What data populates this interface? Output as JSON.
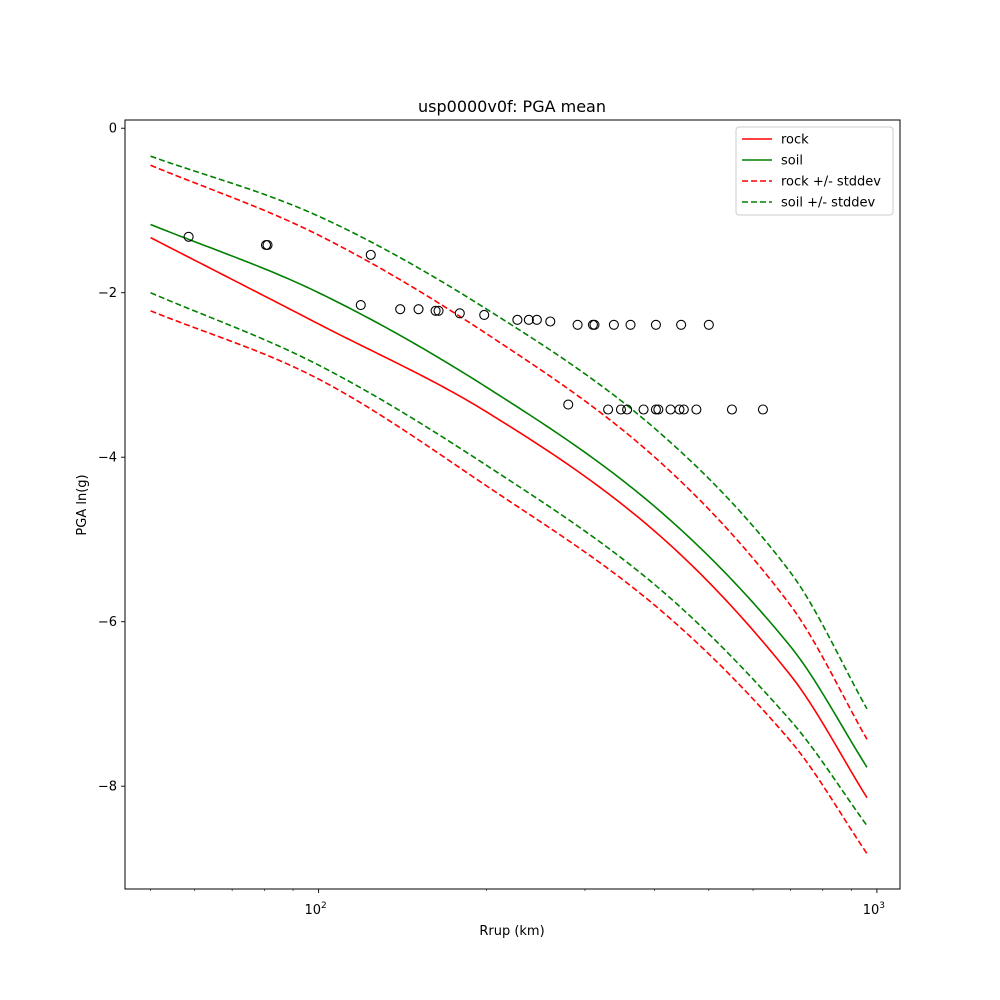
{
  "chart_data": {
    "type": "line",
    "title": "usp0000v0f: PGA mean",
    "xlabel": "Rrup (km)",
    "ylabel": "PGA ln(g)",
    "xscale": "log",
    "xlim": [
      45,
      1100
    ],
    "ylim": [
      -9.25,
      0.1
    ],
    "x_ticks": [
      {
        "value": 100,
        "base": "10",
        "exp": "2"
      },
      {
        "value": 1000,
        "base": "10",
        "exp": "3"
      }
    ],
    "y_ticks": [
      {
        "value": 0,
        "label": "0"
      },
      {
        "value": -2,
        "label": "−2"
      },
      {
        "value": -4,
        "label": "−4"
      },
      {
        "value": -6,
        "label": "−6"
      },
      {
        "value": -8,
        "label": "−8"
      }
    ],
    "grid": false,
    "legend": {
      "position": "top-right",
      "entries": [
        "rock",
        "soil",
        "rock +/- stddev",
        "soil +/- stddev"
      ]
    },
    "series": [
      {
        "name": "rock",
        "color": "#ff0000",
        "dash": "solid",
        "show_in_legend": true,
        "points": [
          [
            50,
            -1.33
          ],
          [
            100,
            -2.38
          ],
          [
            200,
            -3.45
          ],
          [
            400,
            -4.9
          ],
          [
            700,
            -6.65
          ],
          [
            960,
            -8.14
          ]
        ]
      },
      {
        "name": "soil",
        "color": "#008000",
        "dash": "solid",
        "show_in_legend": true,
        "points": [
          [
            50,
            -1.17
          ],
          [
            100,
            -2.0
          ],
          [
            200,
            -3.15
          ],
          [
            400,
            -4.6
          ],
          [
            700,
            -6.3
          ],
          [
            960,
            -7.77
          ]
        ]
      },
      {
        "name": "rock +/- stddev",
        "color": "#ff0000",
        "dash": "dashed",
        "show_in_legend": true,
        "points": [
          [
            50,
            -0.45
          ],
          [
            100,
            -1.3
          ],
          [
            200,
            -2.5
          ],
          [
            400,
            -4.0
          ],
          [
            700,
            -5.8
          ],
          [
            960,
            -7.43
          ]
        ]
      },
      {
        "name": "rock +/- stddev",
        "color": "#ff0000",
        "dash": "dashed",
        "show_in_legend": false,
        "points": [
          [
            50,
            -2.22
          ],
          [
            100,
            -3.05
          ],
          [
            200,
            -4.35
          ],
          [
            400,
            -5.8
          ],
          [
            700,
            -7.45
          ],
          [
            960,
            -8.82
          ]
        ]
      },
      {
        "name": "soil +/- stddev",
        "color": "#008000",
        "dash": "dashed",
        "show_in_legend": true,
        "points": [
          [
            50,
            -0.34
          ],
          [
            100,
            -1.07
          ],
          [
            200,
            -2.2
          ],
          [
            400,
            -3.65
          ],
          [
            700,
            -5.4
          ],
          [
            960,
            -7.06
          ]
        ]
      },
      {
        "name": "soil +/- stddev",
        "color": "#008000",
        "dash": "dashed",
        "show_in_legend": false,
        "points": [
          [
            50,
            -2.0
          ],
          [
            100,
            -2.88
          ],
          [
            200,
            -4.1
          ],
          [
            400,
            -5.55
          ],
          [
            700,
            -7.2
          ],
          [
            960,
            -8.48
          ]
        ]
      }
    ],
    "observations": {
      "marker": "open-circle",
      "color": "#000000",
      "points": [
        [
          58.5,
          -1.32
        ],
        [
          80.5,
          -1.42
        ],
        [
          81.0,
          -1.42
        ],
        [
          124.0,
          -1.54
        ],
        [
          119.0,
          -2.15
        ],
        [
          140.0,
          -2.2
        ],
        [
          151.0,
          -2.2
        ],
        [
          162.0,
          -2.22
        ],
        [
          164.0,
          -2.22
        ],
        [
          179.0,
          -2.25
        ],
        [
          198.0,
          -2.27
        ],
        [
          227.0,
          -2.33
        ],
        [
          238.0,
          -2.33
        ],
        [
          246.0,
          -2.33
        ],
        [
          260.0,
          -2.35
        ],
        [
          291.0,
          -2.39
        ],
        [
          310.0,
          -2.39
        ],
        [
          312.0,
          -2.39
        ],
        [
          338.0,
          -2.39
        ],
        [
          362.0,
          -2.39
        ],
        [
          402.0,
          -2.39
        ],
        [
          446.0,
          -2.39
        ],
        [
          500.0,
          -2.39
        ],
        [
          280.0,
          -3.36
        ],
        [
          330.0,
          -3.42
        ],
        [
          348.0,
          -3.42
        ],
        [
          357.0,
          -3.42
        ],
        [
          382.0,
          -3.42
        ],
        [
          402.0,
          -3.42
        ],
        [
          406.0,
          -3.42
        ],
        [
          427.0,
          -3.42
        ],
        [
          443.0,
          -3.42
        ],
        [
          451.0,
          -3.42
        ],
        [
          475.0,
          -3.42
        ],
        [
          550.0,
          -3.42
        ],
        [
          625.0,
          -3.42
        ]
      ]
    }
  }
}
